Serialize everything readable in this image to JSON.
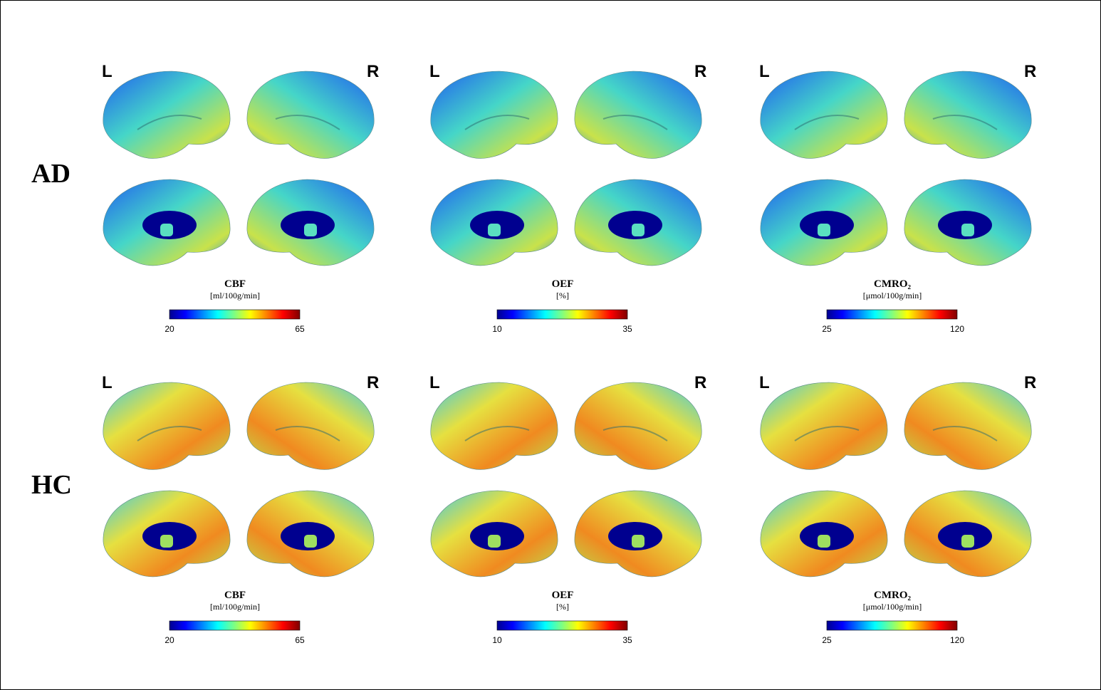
{
  "groups": [
    {
      "label": "AD",
      "panels": [
        {
          "left": "L",
          "right": "R",
          "measure": "CBF",
          "unit": "[ml/100g/min]",
          "range": [
            20,
            65
          ]
        },
        {
          "left": "L",
          "right": "R",
          "measure": "OEF",
          "unit": "[%]",
          "range": [
            10,
            35
          ]
        },
        {
          "left": "L",
          "right": "R",
          "measure": "CMRO₂",
          "unit": "[μmol/100g/min]",
          "range": [
            25,
            120
          ]
        }
      ]
    },
    {
      "label": "HC",
      "panels": [
        {
          "left": "L",
          "right": "R",
          "measure": "CBF",
          "unit": "[ml/100g/min]",
          "range": [
            20,
            65
          ]
        },
        {
          "left": "L",
          "right": "R",
          "measure": "OEF",
          "unit": "[%]",
          "range": [
            10,
            35
          ]
        },
        {
          "left": "L",
          "right": "R",
          "measure": "CMRO₂",
          "unit": "[μmol/100g/min]",
          "range": [
            25,
            120
          ]
        }
      ]
    }
  ]
}
